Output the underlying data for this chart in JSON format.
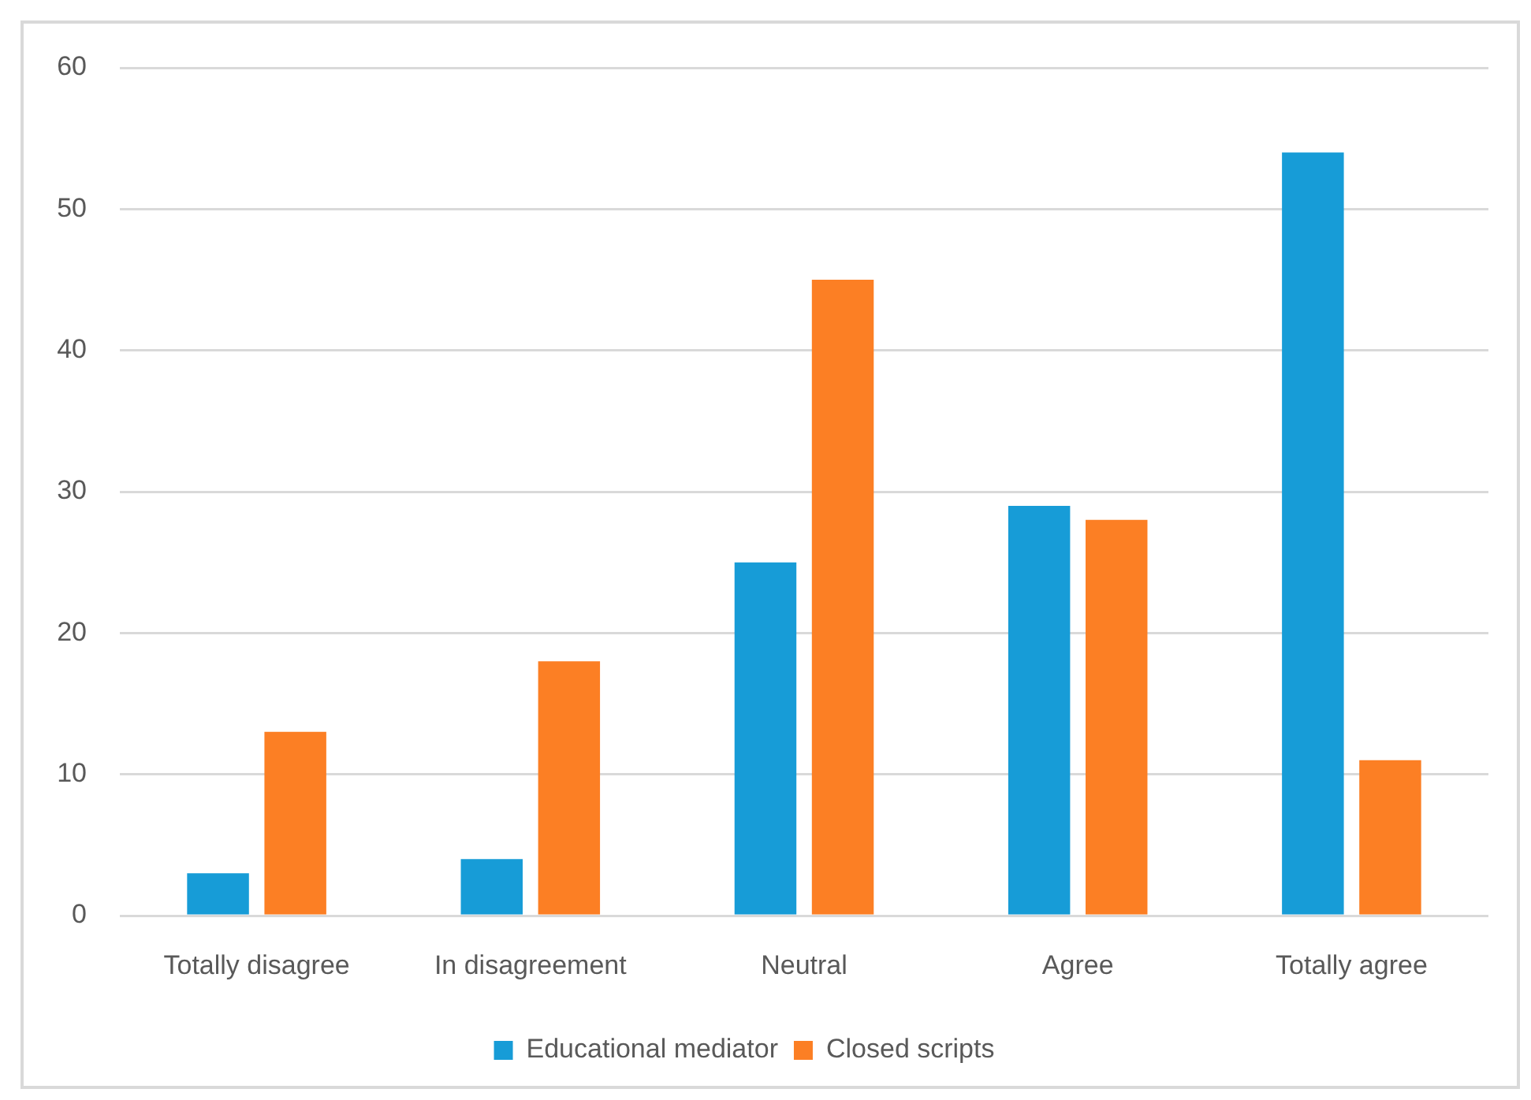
{
  "chart_data": {
    "type": "bar",
    "categories": [
      "Totally disagree",
      "In disagreement",
      "Neutral",
      "Agree",
      "Totally agree"
    ],
    "series": [
      {
        "name": "Educational mediator",
        "color": "#179cd7",
        "values": [
          3,
          4,
          25,
          29,
          54
        ]
      },
      {
        "name": "Closed scripts",
        "color": "#fc7f24",
        "values": [
          13,
          18,
          45,
          28,
          11
        ]
      }
    ],
    "ylim": [
      0,
      60
    ],
    "yticks": [
      0,
      10,
      20,
      30,
      40,
      50,
      60
    ],
    "grid": "y",
    "legend": "bottom"
  }
}
